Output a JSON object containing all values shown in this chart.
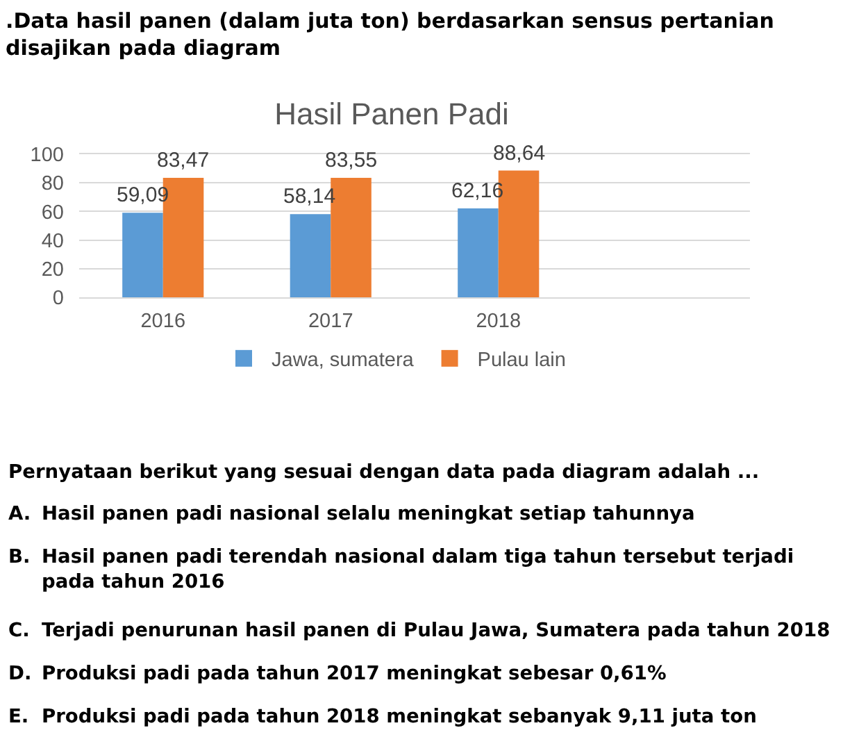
{
  "chart_data": {
    "type": "bar",
    "title": "Hasil Panen Padi",
    "categories": [
      "2016",
      "2017",
      "2018",
      null
    ],
    "series": [
      {
        "name": "Jawa, sumatera",
        "color": "#5b9bd5",
        "values": [
          59.09,
          58.14,
          62.16,
          null
        ],
        "value_labels": [
          "59,09",
          "58,14",
          "62,16",
          null
        ]
      },
      {
        "name": "Pulau lain",
        "color": "#ed7d31",
        "values": [
          83.47,
          83.55,
          88.64,
          null
        ],
        "value_labels": [
          "83,47",
          "83,55",
          "88,64",
          null
        ]
      }
    ],
    "ylim": [
      0,
      100
    ],
    "yticks": [
      0,
      20,
      40,
      60,
      80,
      100
    ],
    "grid": "y",
    "legend": "bottom",
    "annotations": [
      ".Data hasil panen (dalam juta ton) berdasarkan sensus pertanian disajikan pada diagram",
      "Pernyataan berikut yang sesuai dengan data pada diagram adalah ...",
      "A. Hasil panen padi nasional selalu meningkat setiap tahunnya",
      "B. Hasil panen padi terendah nasional dalam tiga tahun tersebut terjadi pada tahun 2016",
      "C. Terjadi penurunan hasil panen di Pulau Jawa, Sumatera pada tahun 2018",
      "D. Produksi padi pada tahun 2017 meningkat sebesar 0,61%",
      "E. Produksi padi pada tahun 2018 meningkat sebanyak 9,11 juta ton"
    ]
  }
}
